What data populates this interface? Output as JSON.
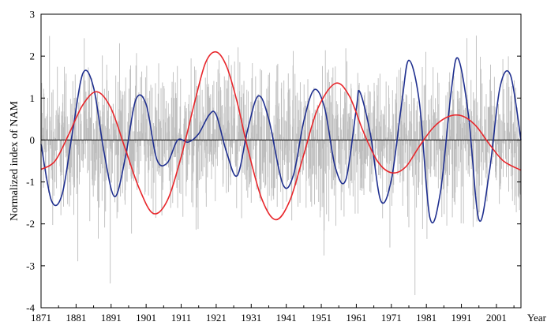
{
  "chart_data": {
    "type": "line",
    "title": "",
    "xlabel": "Year",
    "ylabel": "Normalized index of NAM",
    "xlim": [
      1871,
      2008
    ],
    "ylim": [
      -4,
      3
    ],
    "x_ticks": [
      "1871",
      "1881",
      "1891",
      "1901",
      "1911",
      "1921",
      "1931",
      "1941",
      "1951",
      "1961",
      "1971",
      "1981",
      "1991",
      "2001"
    ],
    "y_ticks": [
      "3",
      "2",
      "1",
      "0",
      "-1",
      "-2",
      "-3",
      "-4"
    ],
    "grid": false,
    "zero_line": true,
    "series": [
      {
        "style": "raw-monthly-bars",
        "color": "#bdbdbd",
        "x_range": [
          1871,
          2008
        ],
        "y_min": -3.7,
        "y_max": 2.85,
        "typical_amplitude": 1.1
      },
      {
        "style": "smooth-line",
        "color": "#1f2f8f",
        "x": [
          1871,
          1874,
          1877,
          1880,
          1883,
          1886,
          1889,
          1892,
          1895,
          1898,
          1901,
          1904,
          1907,
          1910,
          1913,
          1916,
          1919,
          1921,
          1924,
          1927,
          1930,
          1933,
          1936,
          1940,
          1943,
          1946,
          1949,
          1952,
          1955,
          1958,
          1961,
          1962,
          1965,
          1968,
          1971,
          1974,
          1976,
          1979,
          1982,
          1985,
          1988,
          1990,
          1993,
          1996,
          1999,
          2002,
          2005,
          2008
        ],
        "y": [
          -0.1,
          -1.45,
          -1.3,
          0.2,
          1.6,
          1.25,
          -0.3,
          -1.35,
          -0.45,
          0.95,
          0.85,
          -0.45,
          -0.55,
          0.0,
          -0.05,
          0.15,
          0.6,
          0.6,
          -0.3,
          -0.85,
          0.25,
          1.05,
          0.5,
          -1.05,
          -0.85,
          0.45,
          1.2,
          0.75,
          -0.65,
          -0.95,
          0.75,
          1.15,
          0.15,
          -1.45,
          -0.95,
          0.9,
          1.9,
          0.9,
          -1.85,
          -1.25,
          1.1,
          1.95,
          0.6,
          -1.9,
          -0.75,
          1.25,
          1.55,
          0.0
        ]
      },
      {
        "style": "smooth-line",
        "color": "#e8262b",
        "x": [
          1871,
          1875,
          1879,
          1883,
          1887,
          1891,
          1895,
          1899,
          1903,
          1907,
          1911,
          1915,
          1918,
          1921,
          1924,
          1927,
          1930,
          1934,
          1938,
          1942,
          1946,
          1950,
          1955,
          1959,
          1963,
          1967,
          1971,
          1975,
          1979,
          1983,
          1987,
          1991,
          1995,
          1999,
          2003,
          2008
        ],
        "y": [
          -0.7,
          -0.5,
          0.15,
          0.85,
          1.15,
          0.75,
          -0.2,
          -1.15,
          -1.75,
          -1.45,
          -0.4,
          0.95,
          1.85,
          2.1,
          1.75,
          0.9,
          -0.2,
          -1.4,
          -1.9,
          -1.45,
          -0.35,
          0.75,
          1.35,
          1.05,
          0.2,
          -0.5,
          -0.78,
          -0.65,
          -0.15,
          0.3,
          0.55,
          0.58,
          0.35,
          -0.1,
          -0.5,
          -0.72
        ]
      }
    ]
  }
}
